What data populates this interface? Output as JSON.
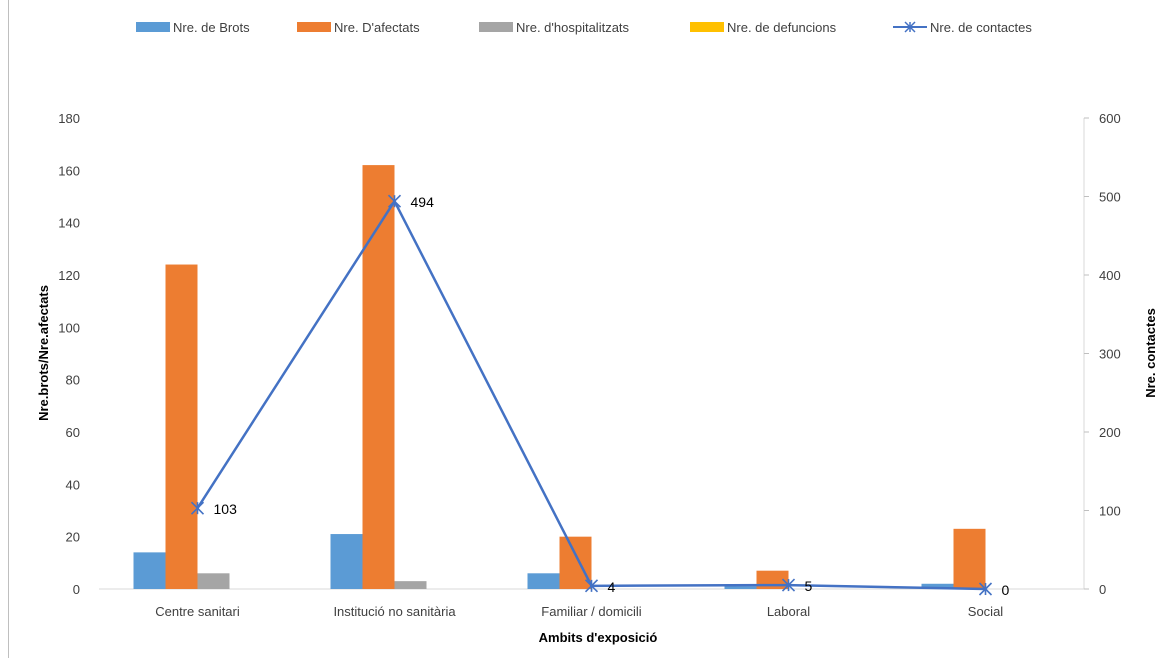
{
  "chart_data": {
    "type": "bar",
    "title": "",
    "xlabel": "Ambits d'exposició",
    "ylabel": "Nre.brots/Nre.afectats",
    "y2label": "Nre. contactes",
    "ylim": [
      0,
      180
    ],
    "y2lim": [
      0,
      600
    ],
    "yticks": [
      "0",
      "20",
      "40",
      "60",
      "80",
      "100",
      "120",
      "140",
      "160",
      "180"
    ],
    "y2ticks": [
      "0",
      "100",
      "200",
      "300",
      "400",
      "500",
      "600"
    ],
    "categories": [
      "Centre sanitari",
      "Institució no sanitària",
      "Familiar / domicili",
      "Laboral",
      "Social"
    ],
    "legend_position": "top",
    "series": [
      {
        "name": "Nre. de Brots",
        "type": "bar",
        "axis": "left",
        "color": "#5b9bd5",
        "values": [
          14,
          21,
          6,
          1,
          2
        ]
      },
      {
        "name": "Nre. D'afectats",
        "type": "bar",
        "axis": "left",
        "color": "#ed7d31",
        "values": [
          124,
          162,
          20,
          7,
          23
        ]
      },
      {
        "name": "Nre. d'hospitalitzats",
        "type": "bar",
        "axis": "left",
        "color": "#a5a5a5",
        "values": [
          6,
          3,
          0,
          0,
          0
        ]
      },
      {
        "name": "Nre. de defuncions",
        "type": "bar",
        "axis": "left",
        "color": "#ffc000",
        "values": [
          0,
          0,
          0,
          0,
          0
        ]
      },
      {
        "name": "Nre. de contactes",
        "type": "line",
        "axis": "right",
        "color": "#4472c4",
        "marker": "asterisk",
        "values": [
          103,
          494,
          4,
          5,
          0
        ],
        "labels": [
          "103",
          "494",
          "4",
          "5",
          "0"
        ]
      }
    ]
  }
}
